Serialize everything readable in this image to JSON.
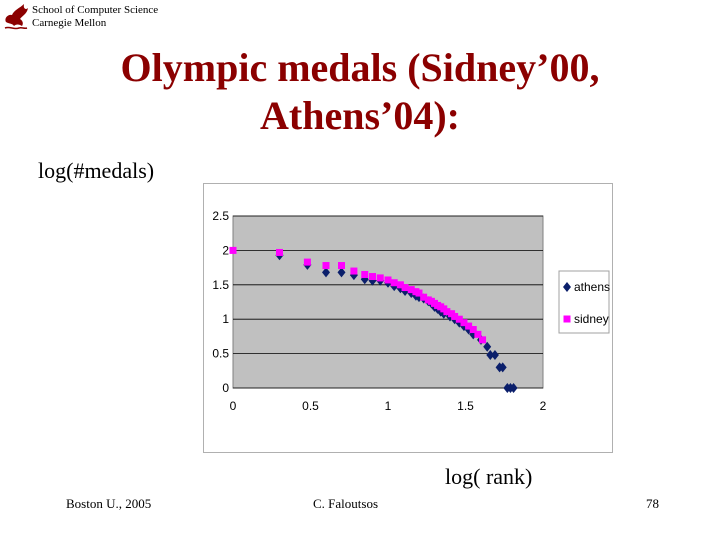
{
  "header": {
    "institution_line1": "School of Computer Science",
    "institution_line2": "Carnegie Mellon"
  },
  "slide": {
    "title_line1": "Olympic medals (Sidney’00,",
    "title_line2": "Athens’04):",
    "y_label": "log(#medals)",
    "x_label": "log( rank)"
  },
  "footer": {
    "left": "Boston U., 2005",
    "center": "C. Faloutsos",
    "page": "78"
  },
  "colors": {
    "title": "#8b0000",
    "plot_bg": "#c0c0c0",
    "athens": "#0b1f6b",
    "sidney": "#ff00ff"
  },
  "chart_data": {
    "type": "scatter",
    "x_ticks": [
      "0",
      "0.5",
      "1",
      "1.5",
      "2"
    ],
    "y_ticks": [
      "0",
      "0.5",
      "1",
      "1.5",
      "2",
      "2.5"
    ],
    "xlim": [
      0,
      2
    ],
    "ylim": [
      0,
      2.5
    ],
    "grid": "horizontal",
    "legend_position": "right",
    "series": [
      {
        "name": "athens",
        "marker": "diamond",
        "color": "#0b1f6b",
        "points": [
          [
            0.3,
            1.93
          ],
          [
            0.48,
            1.79
          ],
          [
            0.6,
            1.68
          ],
          [
            0.7,
            1.68
          ],
          [
            0.78,
            1.64
          ],
          [
            0.85,
            1.58
          ],
          [
            0.9,
            1.56
          ],
          [
            0.95,
            1.56
          ],
          [
            1.0,
            1.53
          ],
          [
            1.04,
            1.48
          ],
          [
            1.08,
            1.45
          ],
          [
            1.11,
            1.41
          ],
          [
            1.15,
            1.38
          ],
          [
            1.18,
            1.34
          ],
          [
            1.2,
            1.32
          ],
          [
            1.23,
            1.3
          ],
          [
            1.26,
            1.26
          ],
          [
            1.28,
            1.23
          ],
          [
            1.3,
            1.18
          ],
          [
            1.32,
            1.15
          ],
          [
            1.34,
            1.11
          ],
          [
            1.36,
            1.08
          ],
          [
            1.4,
            1.04
          ],
          [
            1.43,
            1.0
          ],
          [
            1.46,
            0.95
          ],
          [
            1.49,
            0.9
          ],
          [
            1.52,
            0.85
          ],
          [
            1.55,
            0.78
          ],
          [
            1.6,
            0.7
          ],
          [
            1.64,
            0.6
          ],
          [
            1.66,
            0.48
          ],
          [
            1.69,
            0.48
          ],
          [
            1.72,
            0.3
          ],
          [
            1.74,
            0.3
          ],
          [
            1.77,
            0.0
          ],
          [
            1.79,
            0.0
          ],
          [
            1.81,
            0.0
          ]
        ]
      },
      {
        "name": "sidney",
        "marker": "square",
        "color": "#ff00ff",
        "points": [
          [
            0.0,
            2.0
          ],
          [
            0.3,
            1.97
          ],
          [
            0.48,
            1.83
          ],
          [
            0.6,
            1.78
          ],
          [
            0.7,
            1.78
          ],
          [
            0.78,
            1.7
          ],
          [
            0.85,
            1.65
          ],
          [
            0.9,
            1.62
          ],
          [
            0.95,
            1.6
          ],
          [
            1.0,
            1.57
          ],
          [
            1.04,
            1.53
          ],
          [
            1.08,
            1.5
          ],
          [
            1.11,
            1.46
          ],
          [
            1.15,
            1.43
          ],
          [
            1.18,
            1.4
          ],
          [
            1.2,
            1.38
          ],
          [
            1.23,
            1.32
          ],
          [
            1.26,
            1.28
          ],
          [
            1.28,
            1.26
          ],
          [
            1.3,
            1.23
          ],
          [
            1.32,
            1.2
          ],
          [
            1.34,
            1.18
          ],
          [
            1.36,
            1.15
          ],
          [
            1.38,
            1.11
          ],
          [
            1.41,
            1.08
          ],
          [
            1.43,
            1.04
          ],
          [
            1.46,
            1.0
          ],
          [
            1.49,
            0.95
          ],
          [
            1.52,
            0.9
          ],
          [
            1.55,
            0.85
          ],
          [
            1.58,
            0.78
          ],
          [
            1.61,
            0.7
          ]
        ]
      }
    ]
  }
}
